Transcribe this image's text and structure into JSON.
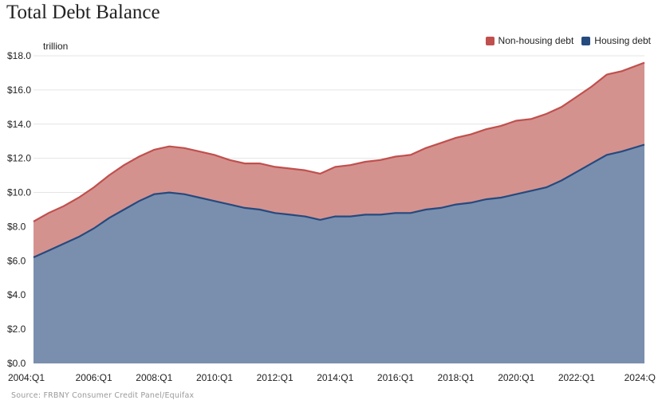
{
  "chart_data": {
    "type": "area",
    "title": "Total Debt Balance",
    "unit_label": "trillion",
    "source": "Source: FRBNY Consumer Credit Panel/Equifax",
    "ylim": [
      0,
      18
    ],
    "y_ticks": [
      "$0.0",
      "$2.0",
      "$4.0",
      "$6.0",
      "$8.0",
      "$10.0",
      "$12.0",
      "$14.0",
      "$16.0",
      "$18.0"
    ],
    "y_tick_values": [
      0,
      2,
      4,
      6,
      8,
      10,
      12,
      14,
      16,
      18
    ],
    "x_ticks": [
      "2004:Q1",
      "2006:Q1",
      "2008:Q1",
      "2010:Q1",
      "2012:Q1",
      "2014:Q1",
      "2016:Q1",
      "2018:Q1",
      "2020:Q1",
      "2022:Q1",
      "2024:Q"
    ],
    "x_tick_years": [
      2004,
      2006,
      2008,
      2010,
      2012,
      2014,
      2016,
      2018,
      2020,
      2022,
      2024
    ],
    "x_range": [
      2004,
      2024.25
    ],
    "legend": [
      {
        "name": "Non-housing debt",
        "color": "#c0504d"
      },
      {
        "name": "Housing debt",
        "color": "#254a7e"
      }
    ],
    "stacked": true,
    "series": [
      {
        "name": "Housing debt",
        "fill": "#7a8fae",
        "line": "#254a7e",
        "x": [
          2004,
          2004.5,
          2005,
          2005.5,
          2006,
          2006.5,
          2007,
          2007.5,
          2008,
          2008.5,
          2009,
          2009.5,
          2010,
          2010.5,
          2011,
          2011.5,
          2012,
          2012.5,
          2013,
          2013.5,
          2014,
          2014.5,
          2015,
          2015.5,
          2016,
          2016.5,
          2017,
          2017.5,
          2018,
          2018.5,
          2019,
          2019.5,
          2020,
          2020.5,
          2021,
          2021.5,
          2022,
          2022.5,
          2023,
          2023.5,
          2024.25
        ],
        "values": [
          6.2,
          6.6,
          7.0,
          7.4,
          7.9,
          8.5,
          9.0,
          9.5,
          9.9,
          10.0,
          9.9,
          9.7,
          9.5,
          9.3,
          9.1,
          9.0,
          8.8,
          8.7,
          8.6,
          8.4,
          8.6,
          8.6,
          8.7,
          8.7,
          8.8,
          8.8,
          9.0,
          9.1,
          9.3,
          9.4,
          9.6,
          9.7,
          9.9,
          10.1,
          10.3,
          10.7,
          11.2,
          11.7,
          12.2,
          12.4,
          12.8
        ]
      },
      {
        "name": "Non-housing debt",
        "fill": "#d4928f",
        "line": "#c0504d",
        "x": [
          2004,
          2004.5,
          2005,
          2005.5,
          2006,
          2006.5,
          2007,
          2007.5,
          2008,
          2008.5,
          2009,
          2009.5,
          2010,
          2010.5,
          2011,
          2011.5,
          2012,
          2012.5,
          2013,
          2013.5,
          2014,
          2014.5,
          2015,
          2015.5,
          2016,
          2016.5,
          2017,
          2017.5,
          2018,
          2018.5,
          2019,
          2019.5,
          2020,
          2020.5,
          2021,
          2021.5,
          2022,
          2022.5,
          2023,
          2023.5,
          2024.25
        ],
        "values": [
          2.1,
          2.2,
          2.2,
          2.3,
          2.4,
          2.5,
          2.6,
          2.6,
          2.6,
          2.7,
          2.7,
          2.7,
          2.7,
          2.6,
          2.6,
          2.7,
          2.7,
          2.7,
          2.7,
          2.7,
          2.9,
          3.0,
          3.1,
          3.2,
          3.3,
          3.4,
          3.6,
          3.8,
          3.9,
          4.0,
          4.1,
          4.2,
          4.3,
          4.2,
          4.3,
          4.3,
          4.4,
          4.5,
          4.7,
          4.7,
          4.8
        ]
      }
    ]
  }
}
